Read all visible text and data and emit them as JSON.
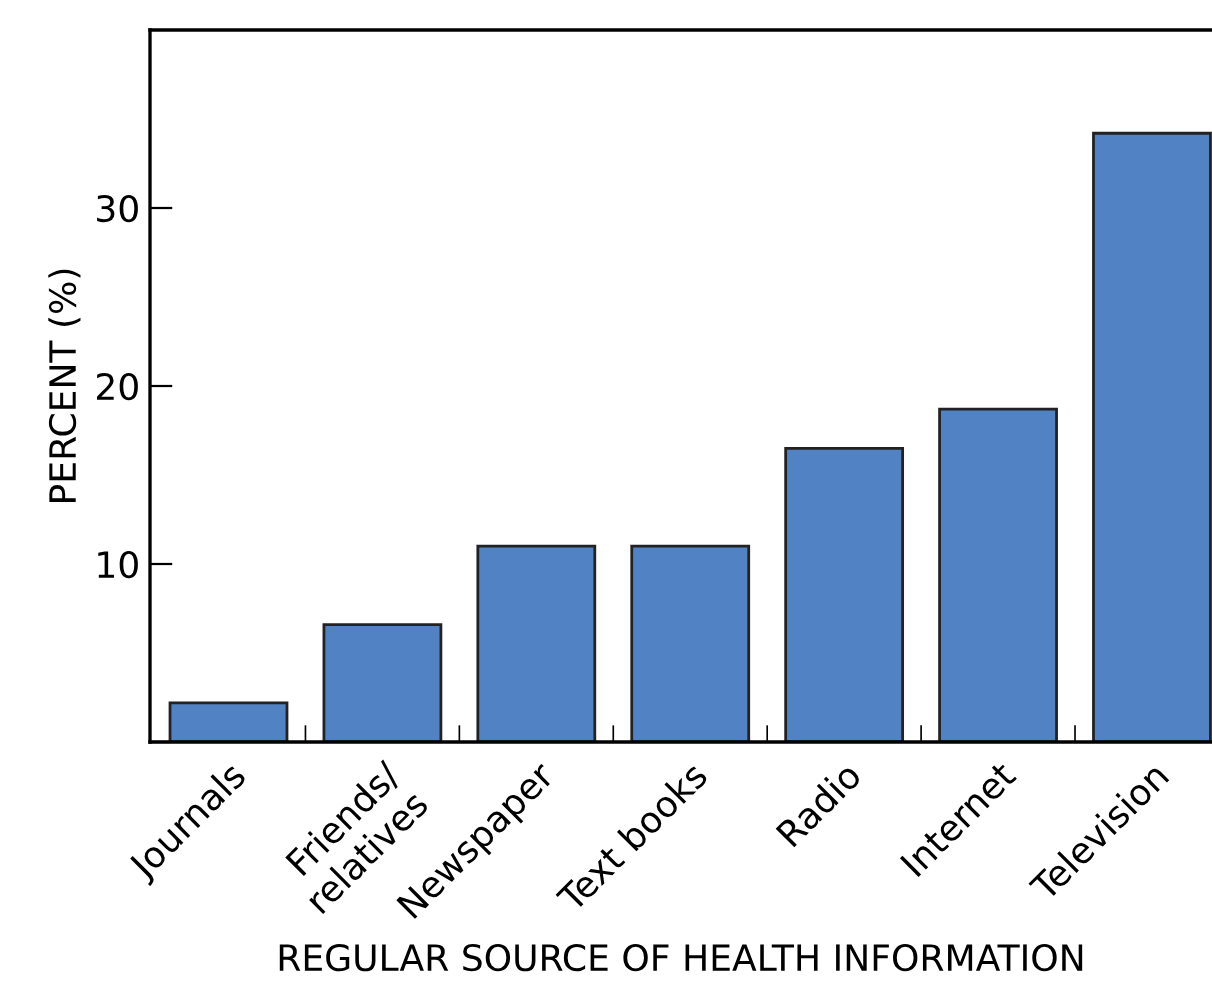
{
  "chart_data": {
    "type": "bar",
    "xlabel": "REGULAR SOURCE OF HEALTH INFORMATION",
    "ylabel": "PERCENT (%)",
    "categories": [
      "Journals",
      "Friends/\nrelatives",
      "Newspaper",
      "Text books",
      "Radio",
      "Internet",
      "Television"
    ],
    "values": [
      2.2,
      6.6,
      11.0,
      11.0,
      16.5,
      18.7,
      34.2
    ],
    "color": "#5183c4",
    "ylim": [
      0,
      40
    ],
    "yticks": [
      {
        "value": 0,
        "label": null
      },
      10,
      20,
      30
    ],
    "grid": false
  }
}
